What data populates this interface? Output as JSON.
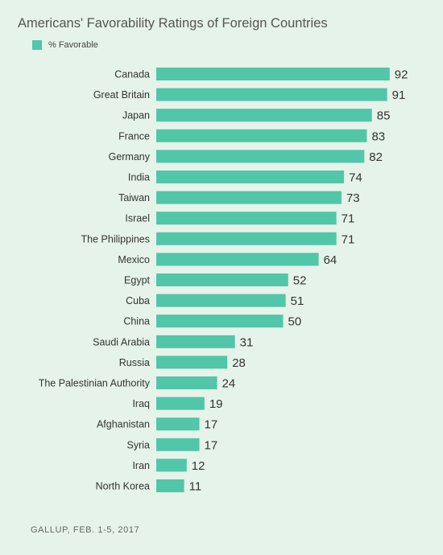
{
  "header": {
    "title": "Americans' Favorability Ratings of Foreign Countries"
  },
  "legend": {
    "label": "% Favorable"
  },
  "footer": {
    "source": "GALLUP, FEB. 1-5, 2017"
  },
  "colors": {
    "bar": "#52c6a8",
    "background": "#e6f3ea",
    "text": "#333333"
  },
  "chart_data": {
    "type": "bar",
    "orientation": "horizontal",
    "title": "Americans' Favorability Ratings of Foreign Countries",
    "xlabel": "",
    "ylabel": "",
    "xlim": [
      0,
      100
    ],
    "grid": false,
    "legend_position": "top-left",
    "categories": [
      "Canada",
      "Great Britain",
      "Japan",
      "France",
      "Germany",
      "India",
      "Taiwan",
      "Israel",
      "The Philippines",
      "Mexico",
      "Egypt",
      "Cuba",
      "China",
      "Saudi Arabia",
      "Russia",
      "The Palestinian Authority",
      "Iraq",
      "Afghanistan",
      "Syria",
      "Iran",
      "North Korea"
    ],
    "series": [
      {
        "name": "% Favorable",
        "values": [
          92,
          91,
          85,
          83,
          82,
          74,
          73,
          71,
          71,
          64,
          52,
          51,
          50,
          31,
          28,
          24,
          19,
          17,
          17,
          12,
          11
        ]
      }
    ]
  }
}
